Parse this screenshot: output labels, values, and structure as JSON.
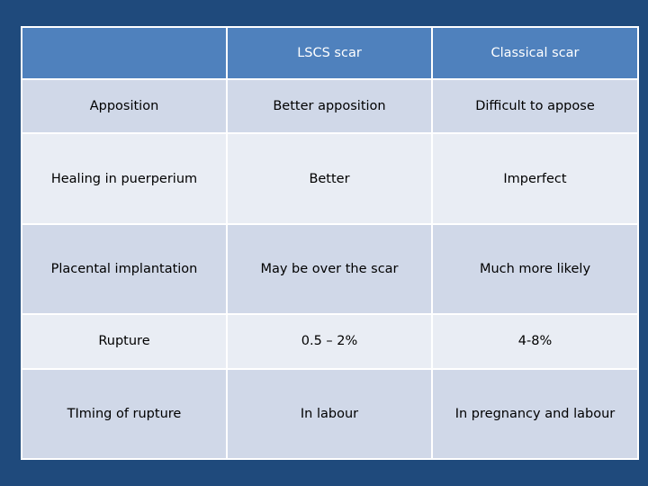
{
  "table": {
    "header": [
      "",
      "LSCS scar",
      "Classical scar"
    ],
    "rows": [
      [
        "Apposition",
        "Better apposition",
        "Difficult to appose"
      ],
      [
        "Healing in puerperium",
        "Better",
        "Imperfect"
      ],
      [
        "Placental implantation",
        "May be over the scar",
        "Much more likely"
      ],
      [
        "Rupture",
        "0.5 – 2%",
        "4-8%"
      ],
      [
        "TIming of rupture",
        "In labour",
        "In pregnancy and labour"
      ]
    ]
  },
  "colors": {
    "background": "#1f4a7c",
    "header_fill": "#4f81bd",
    "row_fill_dark": "#d0d8e8",
    "row_fill_light": "#e9edf4",
    "border": "#ffffff"
  }
}
